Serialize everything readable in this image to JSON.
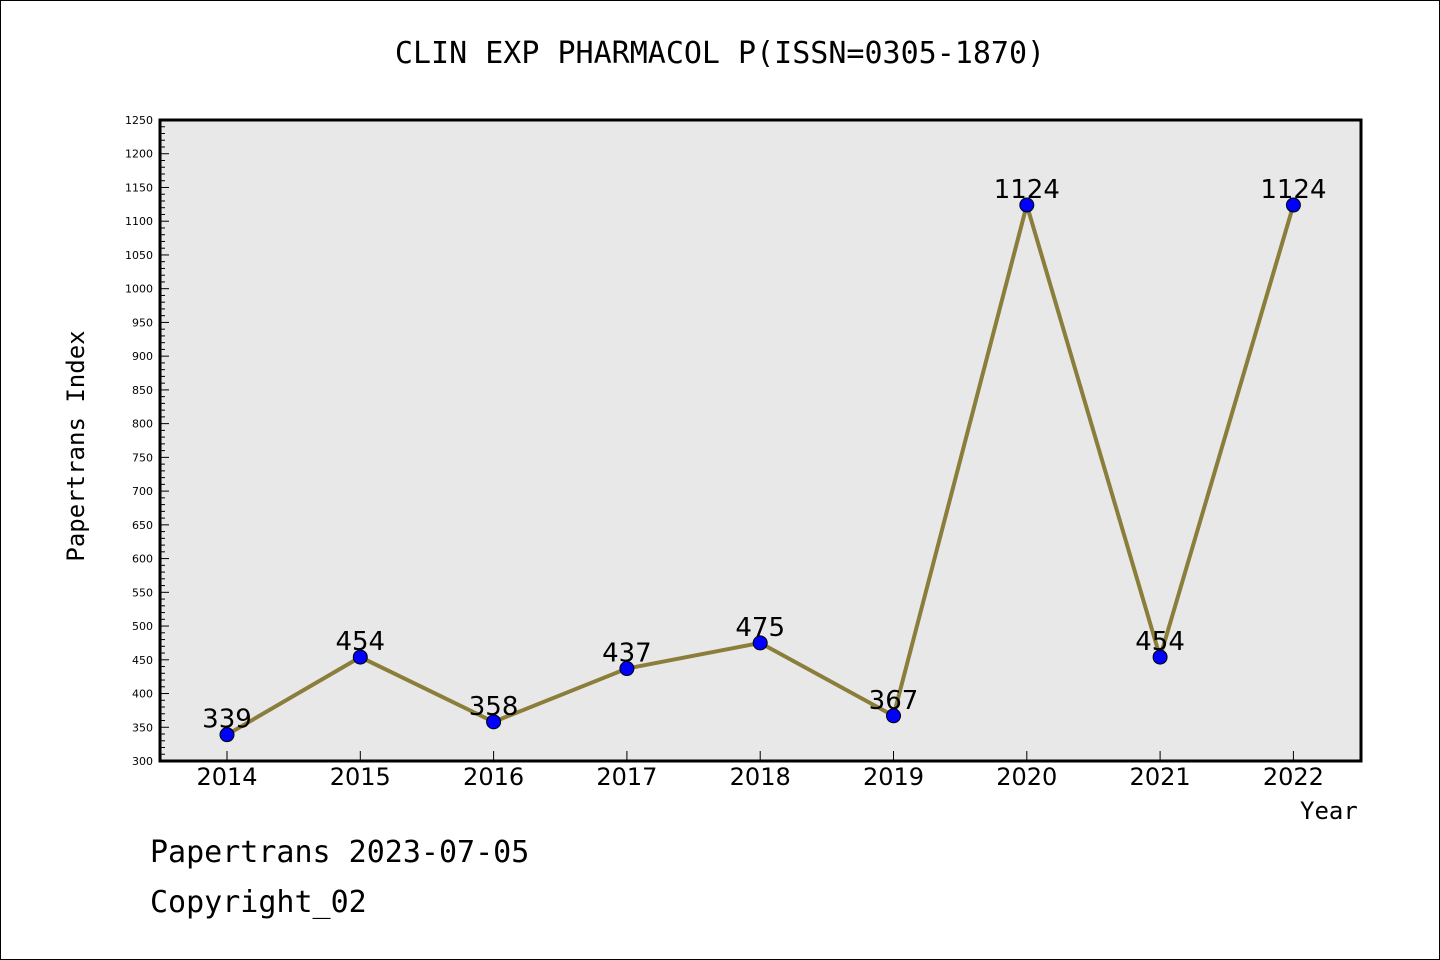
{
  "chart_data": {
    "type": "line",
    "title": "CLIN EXP PHARMACOL P(ISSN=0305-1870)",
    "xlabel": "Year",
    "ylabel": "Papertrans Index",
    "categories": [
      "2014",
      "2015",
      "2016",
      "2017",
      "2018",
      "2019",
      "2020",
      "2021",
      "2022"
    ],
    "values": [
      339,
      454,
      358,
      437,
      475,
      367,
      1124,
      454,
      1124
    ],
    "data_labels": [
      "339",
      "454",
      "358",
      "437",
      "475",
      "367",
      "1124",
      "454",
      "1124"
    ],
    "ylim": [
      300,
      1250
    ],
    "yticks": [
      300,
      350,
      400,
      450,
      500,
      550,
      600,
      650,
      700,
      750,
      800,
      850,
      900,
      950,
      1000,
      1050,
      1100,
      1150,
      1200,
      1250
    ],
    "grid": false,
    "line_color": "#8b7d3a",
    "marker_color": "#0000ff",
    "plot_background": "#e8e8e8"
  },
  "footer": {
    "line1": "Papertrans 2023-07-05",
    "line2": "Copyright_02"
  }
}
